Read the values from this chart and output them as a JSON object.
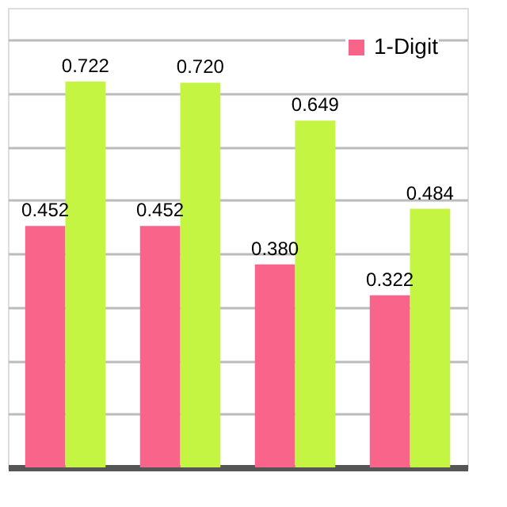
{
  "chart_data": {
    "type": "bar",
    "categories": [
      null,
      null,
      null,
      null
    ],
    "series": [
      {
        "name": "1-Digit",
        "color": "#f8648a",
        "values": [
          0.452,
          0.452,
          0.38,
          0.322
        ],
        "value_labels": [
          "0.452",
          "0.452",
          "0.380",
          "0.322"
        ]
      },
      {
        "color": "#c4f542",
        "values": [
          0.722,
          0.72,
          0.649,
          0.484
        ],
        "value_labels": [
          "0.722",
          "0.720",
          "0.649",
          "0.484"
        ]
      }
    ],
    "ylim": [
      0,
      0.86
    ],
    "grid": "y",
    "tick_labels": false,
    "legend": "top right"
  }
}
